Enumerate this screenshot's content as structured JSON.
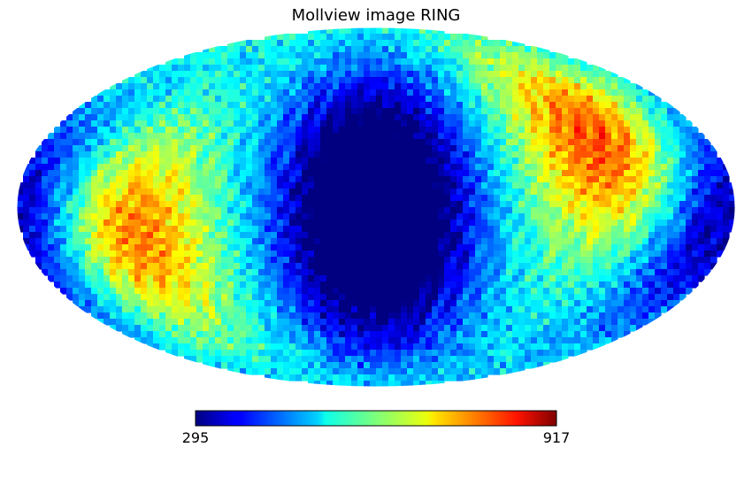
{
  "chart_data": {
    "type": "heatmap",
    "projection": "mollweide",
    "title": "Mollview image RING",
    "colormap": "jet",
    "colorbar": {
      "min": 295,
      "max": 917,
      "min_label": "295",
      "max_label": "917",
      "placement": "bottom"
    },
    "field_features": [
      {
        "kind": "minimum",
        "lon_deg": 0,
        "lat_deg": 20,
        "value": 300
      },
      {
        "kind": "minimum",
        "lon_deg": 0,
        "lat_deg": -25,
        "value": 300
      },
      {
        "kind": "maximum",
        "lon_deg": 130,
        "lat_deg": 25,
        "value": 900
      },
      {
        "kind": "maximum",
        "lon_deg": -135,
        "lat_deg": -10,
        "value": 900
      },
      {
        "kind": "minimum",
        "lon_deg": 180,
        "lat_deg": 15,
        "value": 330
      },
      {
        "kind": "minimum",
        "lon_deg": -180,
        "lat_deg": -15,
        "value": 330
      }
    ]
  }
}
